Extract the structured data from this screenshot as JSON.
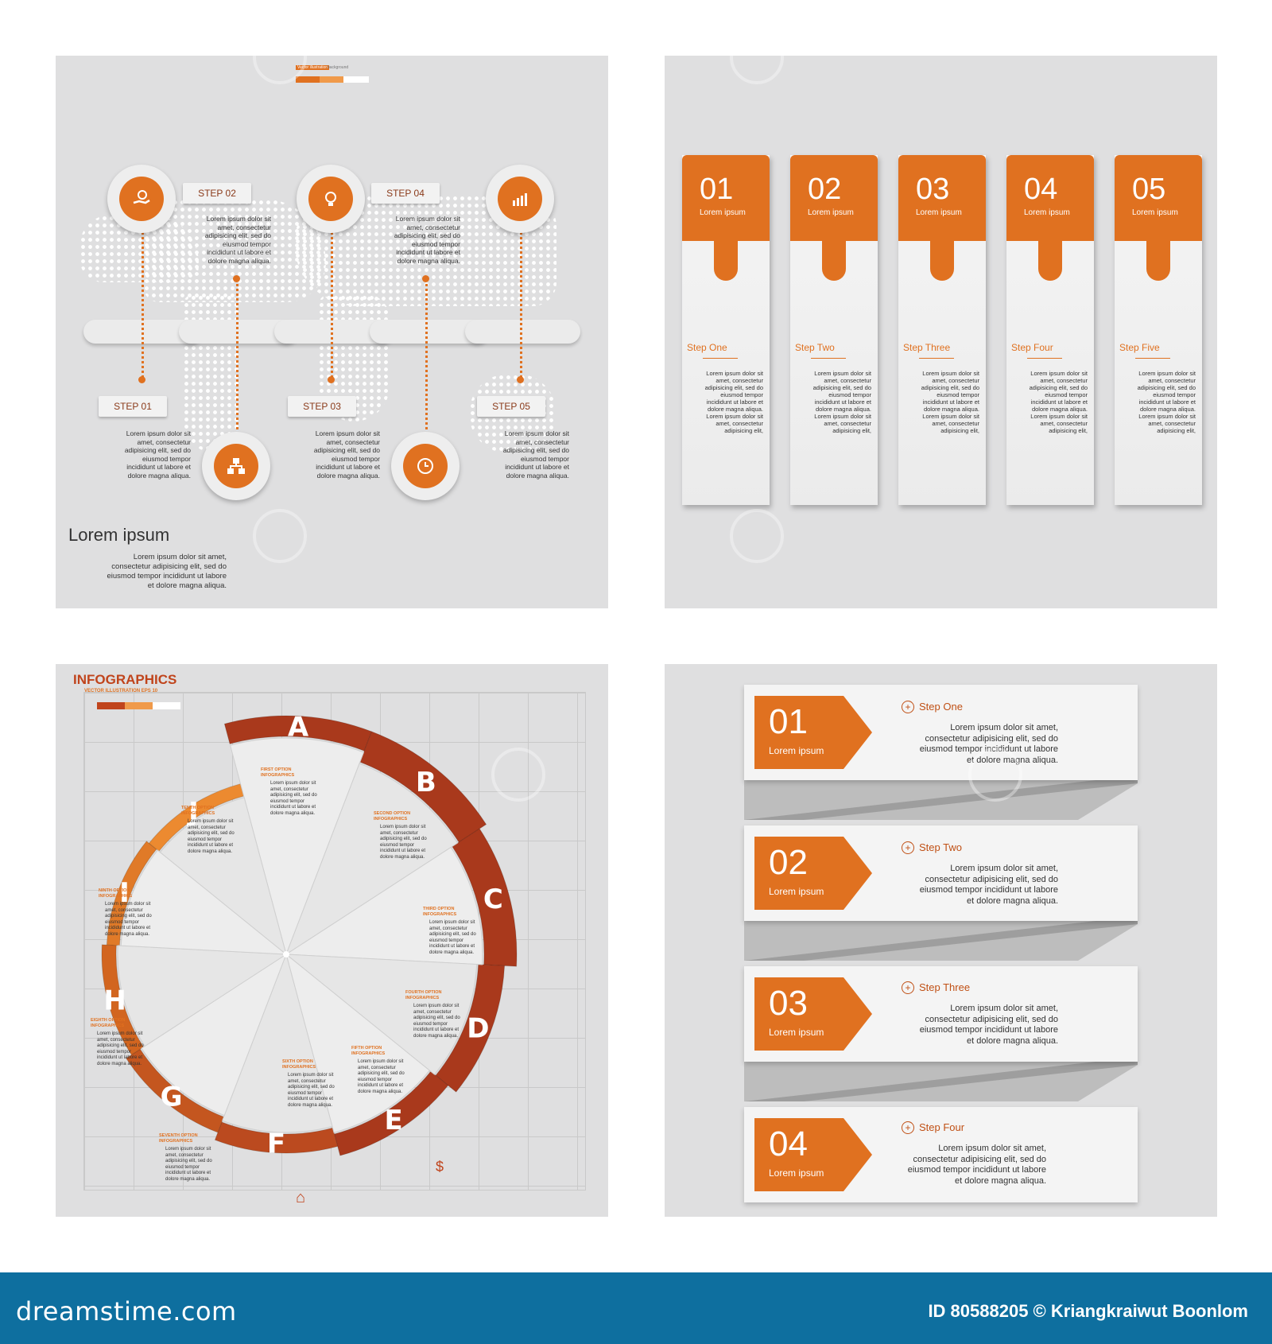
{
  "colors": {
    "accent": "#e07120",
    "dark_accent": "#a9391c",
    "panel_bg": "#dfdfe0",
    "footer_bg": "#0e6f9f"
  },
  "panel1": {
    "header_small": "Vector illustration",
    "header_small2": "background",
    "steps": [
      "STEP 01",
      "STEP 02",
      "STEP 03",
      "STEP 04",
      "STEP 05"
    ],
    "step_text": "Lorem ipsum dolor sit amet, consectetur adipisicing elit, sed do eiusmod tempor incididunt ut labore et dolore magna aliqua.",
    "icons": [
      "money-hand-icon",
      "lightbulb-icon",
      "chart-icon",
      "hierarchy-icon",
      "clock-icon"
    ],
    "title": "Lorem ipsum",
    "desc": "Lorem ipsum dolor sit amet, consectetur adipisicing elit, sed do eiusmod tempor incididunt ut labore et dolore magna aliqua."
  },
  "panel2": {
    "cards": [
      {
        "num": "01",
        "sub": "Lorem ipsum",
        "title": "Step One"
      },
      {
        "num": "02",
        "sub": "Lorem ipsum",
        "title": "Step Two"
      },
      {
        "num": "03",
        "sub": "Lorem ipsum",
        "title": "Step Three"
      },
      {
        "num": "04",
        "sub": "Lorem ipsum",
        "title": "Step Four"
      },
      {
        "num": "05",
        "sub": "Lorem ipsum",
        "title": "Step Five"
      }
    ],
    "card_text": "Lorem ipsum dolor sit amet, consectetur adipisicing elit, sed do eiusmod tempor incididunt ut labore et dolore magna aliqua. Lorem ipsum dolor sit amet, consectetur adipisicing elit,"
  },
  "panel3": {
    "title": "INFOGRAPHICS",
    "subtitle": "VECTOR ILLUSTRATION EPS 10",
    "letters": [
      "A",
      "B",
      "C",
      "D",
      "E",
      "F",
      "G",
      "H",
      "I",
      "J"
    ],
    "options": [
      "FIRST OPTION",
      "SECOND OPTION",
      "THIRD OPTION",
      "FOURTH OPTION",
      "FIFTH OPTION",
      "SIXTH OPTION",
      "SEVENTH OPTION",
      "EIGHTH OPTION",
      "NINTH OPTION",
      "TENTH OPTION"
    ],
    "option_sub": "INFOGRAPHICS",
    "option_text": "Lorem ipsum dolor sit amet, consectetur adipisicing elit, sed do eiusmod tempor incididunt ut labore et dolore magna aliqua."
  },
  "panel4": {
    "rows": [
      {
        "num": "01",
        "sub": "Lorem ipsum",
        "title": "Step One"
      },
      {
        "num": "02",
        "sub": "Lorem ipsum",
        "title": "Step Two"
      },
      {
        "num": "03",
        "sub": "Lorem ipsum",
        "title": "Step Three"
      },
      {
        "num": "04",
        "sub": "Lorem ipsum",
        "title": "Step Four"
      }
    ],
    "row_text": "Lorem ipsum dolor sit amet, consectetur adipisicing elit, sed do eiusmod tempor incididunt ut labore et dolore magna aliqua."
  },
  "footer": {
    "logo": "dreamstime.com",
    "credit": "ID 80588205 © Kriangkraiwut Boonlom"
  }
}
